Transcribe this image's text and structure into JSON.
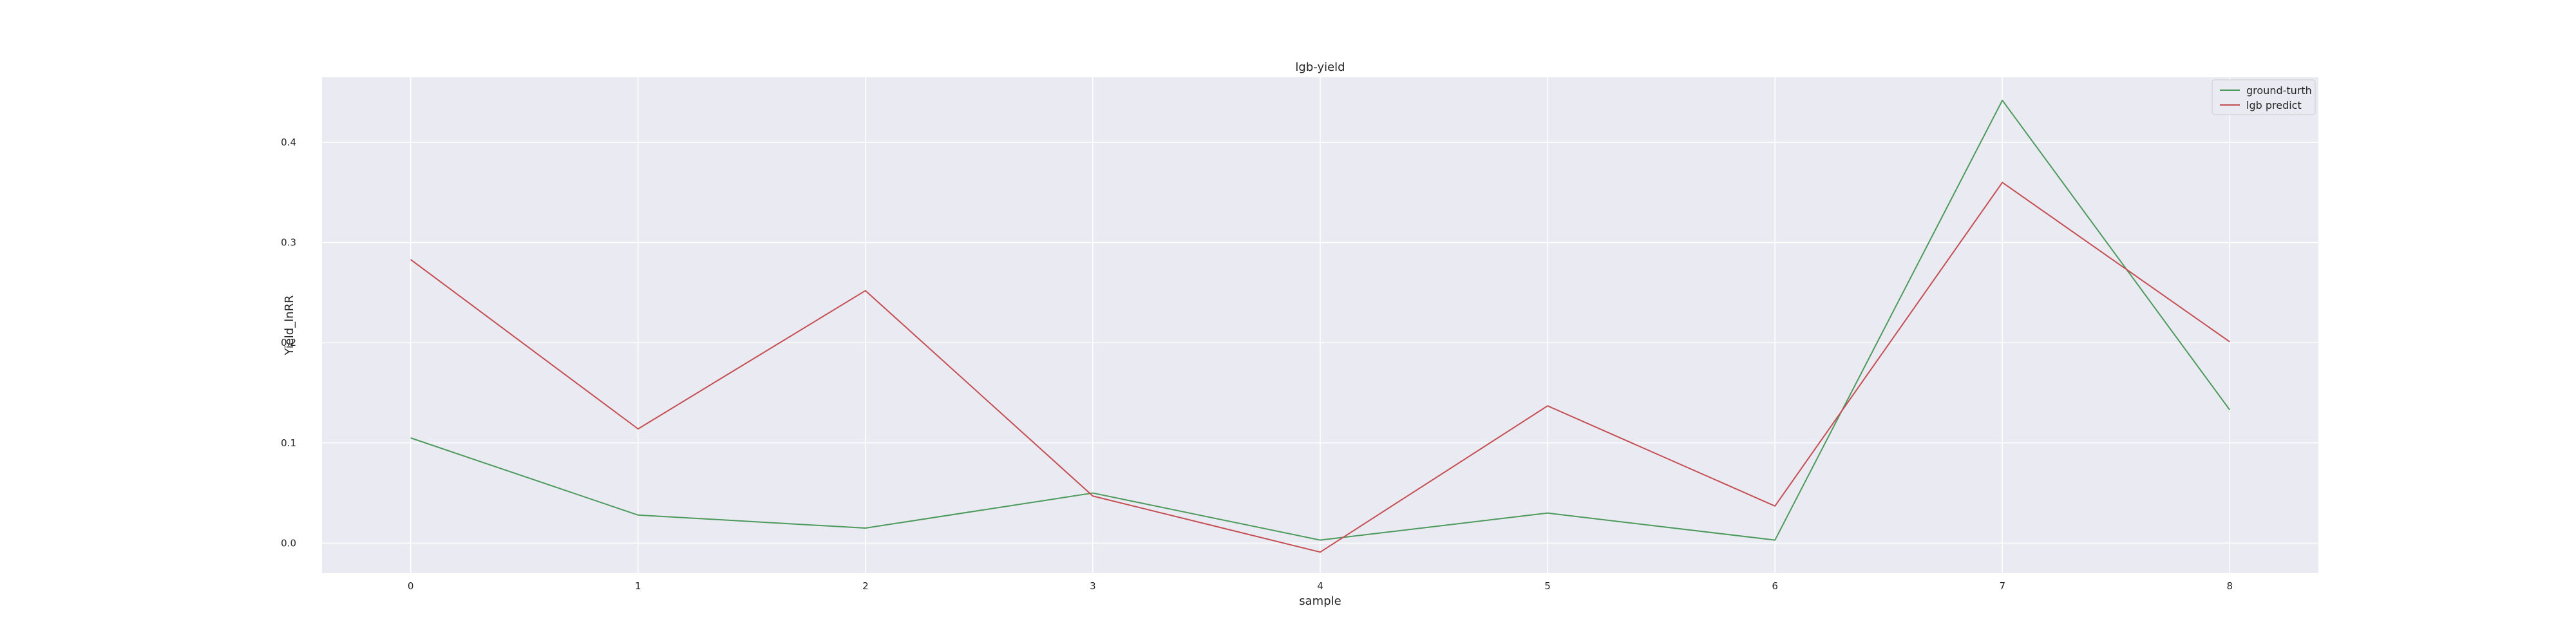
{
  "chart_data": {
    "type": "line",
    "title": "lgb-yield",
    "xlabel": "sample",
    "ylabel": "Yield_lnRR",
    "x": [
      0,
      1,
      2,
      3,
      4,
      5,
      6,
      7,
      8
    ],
    "xticks": [
      "0",
      "1",
      "2",
      "3",
      "4",
      "5",
      "6",
      "7",
      "8"
    ],
    "yticks": [
      "0.0",
      "0.1",
      "0.2",
      "0.3",
      "0.4"
    ],
    "ylim": [
      -0.03,
      0.465
    ],
    "xlim": [
      -0.39,
      8.39
    ],
    "grid": true,
    "legend_position": "top-right",
    "background_color": "#eaeaf2",
    "series": [
      {
        "name": "ground-turth",
        "color": "#4c9a5b",
        "values": [
          0.105,
          0.028,
          0.015,
          0.05,
          0.003,
          0.03,
          0.003,
          0.442,
          0.133
        ]
      },
      {
        "name": "lgb predict",
        "color": "#c44e52",
        "values": [
          0.283,
          0.114,
          0.252,
          0.047,
          -0.009,
          0.137,
          0.037,
          0.36,
          0.201
        ]
      }
    ]
  }
}
